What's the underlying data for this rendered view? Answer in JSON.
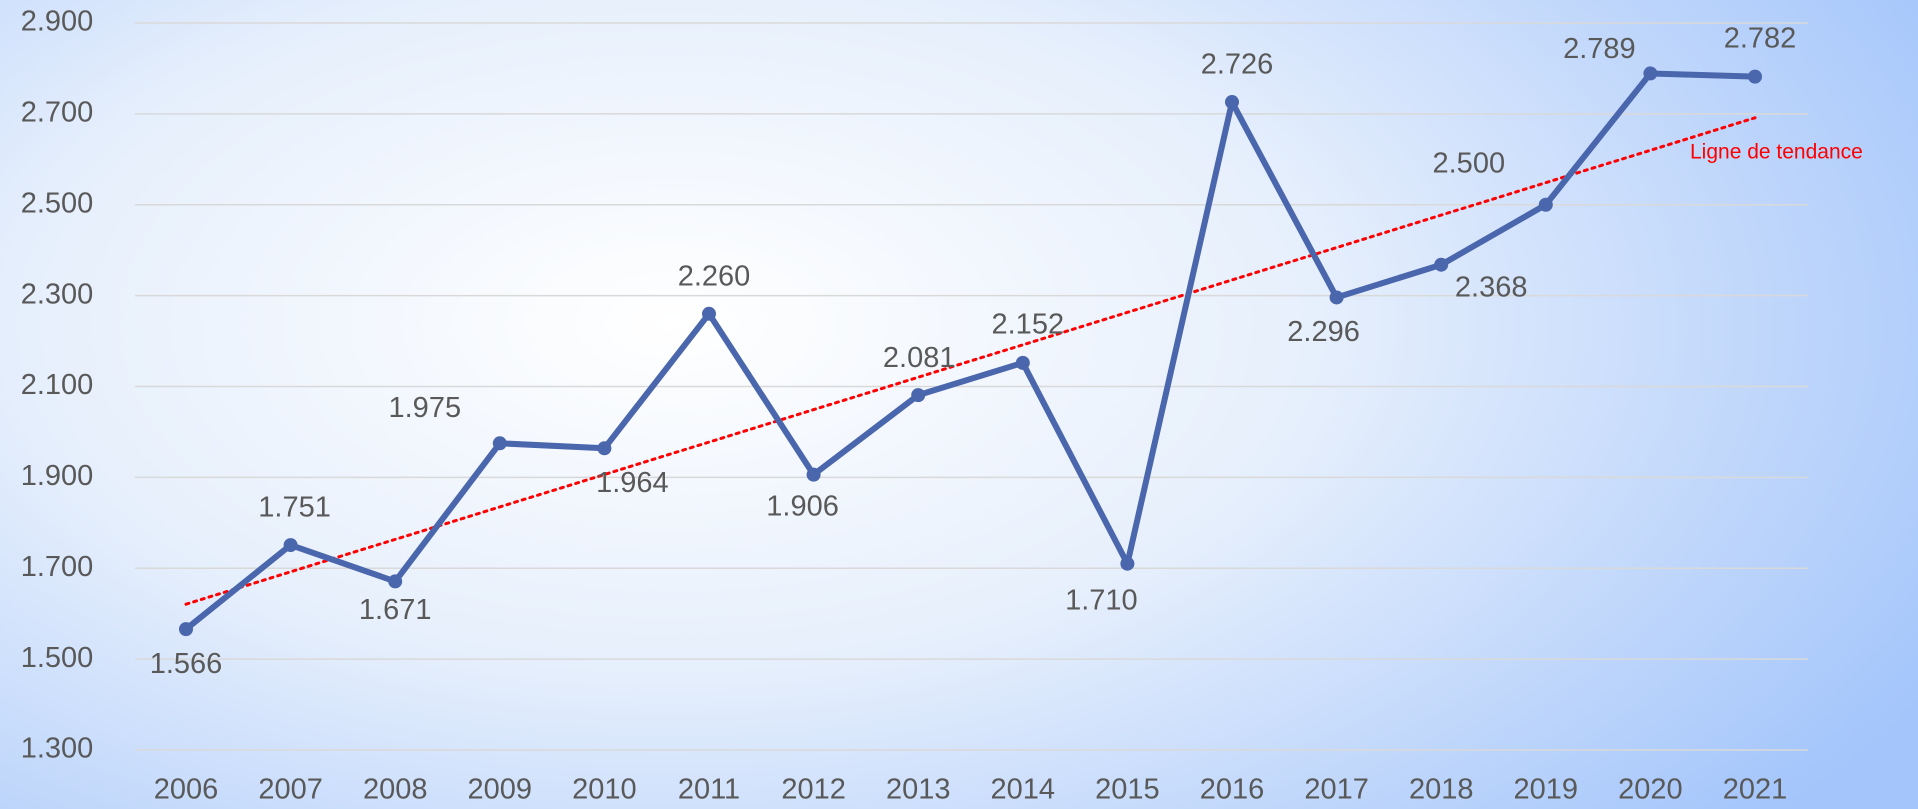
{
  "chart_data": {
    "type": "line",
    "categories": [
      "2006",
      "2007",
      "2008",
      "2009",
      "2010",
      "2011",
      "2012",
      "2013",
      "2014",
      "2015",
      "2016",
      "2017",
      "2018",
      "2019",
      "2020",
      "2021"
    ],
    "series": [
      {
        "name": null,
        "color": "#4a66ac",
        "values": [
          1.566,
          1.751,
          1.671,
          1.975,
          1.964,
          2.26,
          1.906,
          2.081,
          2.152,
          1.71,
          2.726,
          2.296,
          2.368,
          2.5,
          2.789,
          2.782
        ],
        "value_labels": [
          "1.566",
          "1.751",
          "1.671",
          "1.975",
          "1.964",
          "2.260",
          "1.906",
          "2.081",
          "2.152",
          "1.710",
          "2.726",
          "2.296",
          "2.368",
          "2.500",
          "2.789",
          "2.782"
        ]
      }
    ],
    "ylim": [
      1.3,
      2.9
    ],
    "yticks": [
      {
        "value": 1.3,
        "label": "1.300"
      },
      {
        "value": 1.5,
        "label": "1.500"
      },
      {
        "value": 1.7,
        "label": "1.700"
      },
      {
        "value": 1.9,
        "label": "1.900"
      },
      {
        "value": 2.1,
        "label": "2.100"
      },
      {
        "value": 2.3,
        "label": "2.300"
      },
      {
        "value": 2.5,
        "label": "2.500"
      },
      {
        "value": 2.7,
        "label": "2.700"
      },
      {
        "value": 2.9,
        "label": "2.900"
      }
    ],
    "grid": true,
    "trendline": {
      "label": "Ligne de tendance",
      "color": "#ff0000"
    }
  }
}
